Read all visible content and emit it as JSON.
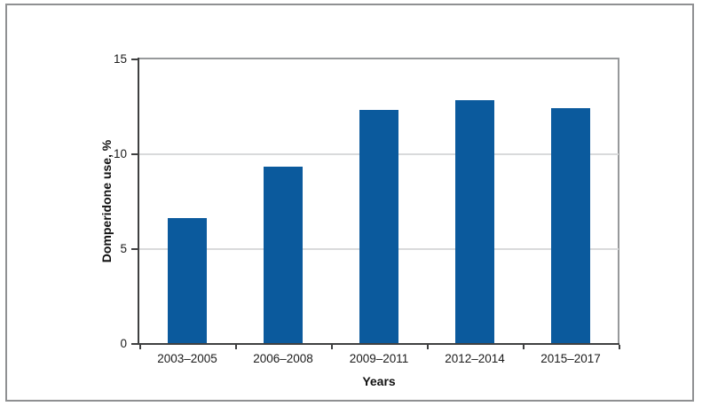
{
  "chart_data": {
    "type": "bar",
    "title": "",
    "xlabel": "Years",
    "ylabel": "Domperidone use, %",
    "categories": [
      "2003–2005",
      "2006–2008",
      "2009–2011",
      "2012–2014",
      "2015–2017"
    ],
    "values": [
      6.6,
      9.3,
      12.3,
      12.8,
      12.4
    ],
    "ylim": [
      0,
      15
    ],
    "yticks": [
      0,
      5,
      10,
      15
    ],
    "gridlines_at": [
      5,
      10
    ],
    "grid": "horizontal-only",
    "legend_position": "none",
    "bar_color": "#0b5a9d",
    "gridline_color": "#d9dadb",
    "axis_color": "#3f4041",
    "frame_color": "#97999b"
  }
}
